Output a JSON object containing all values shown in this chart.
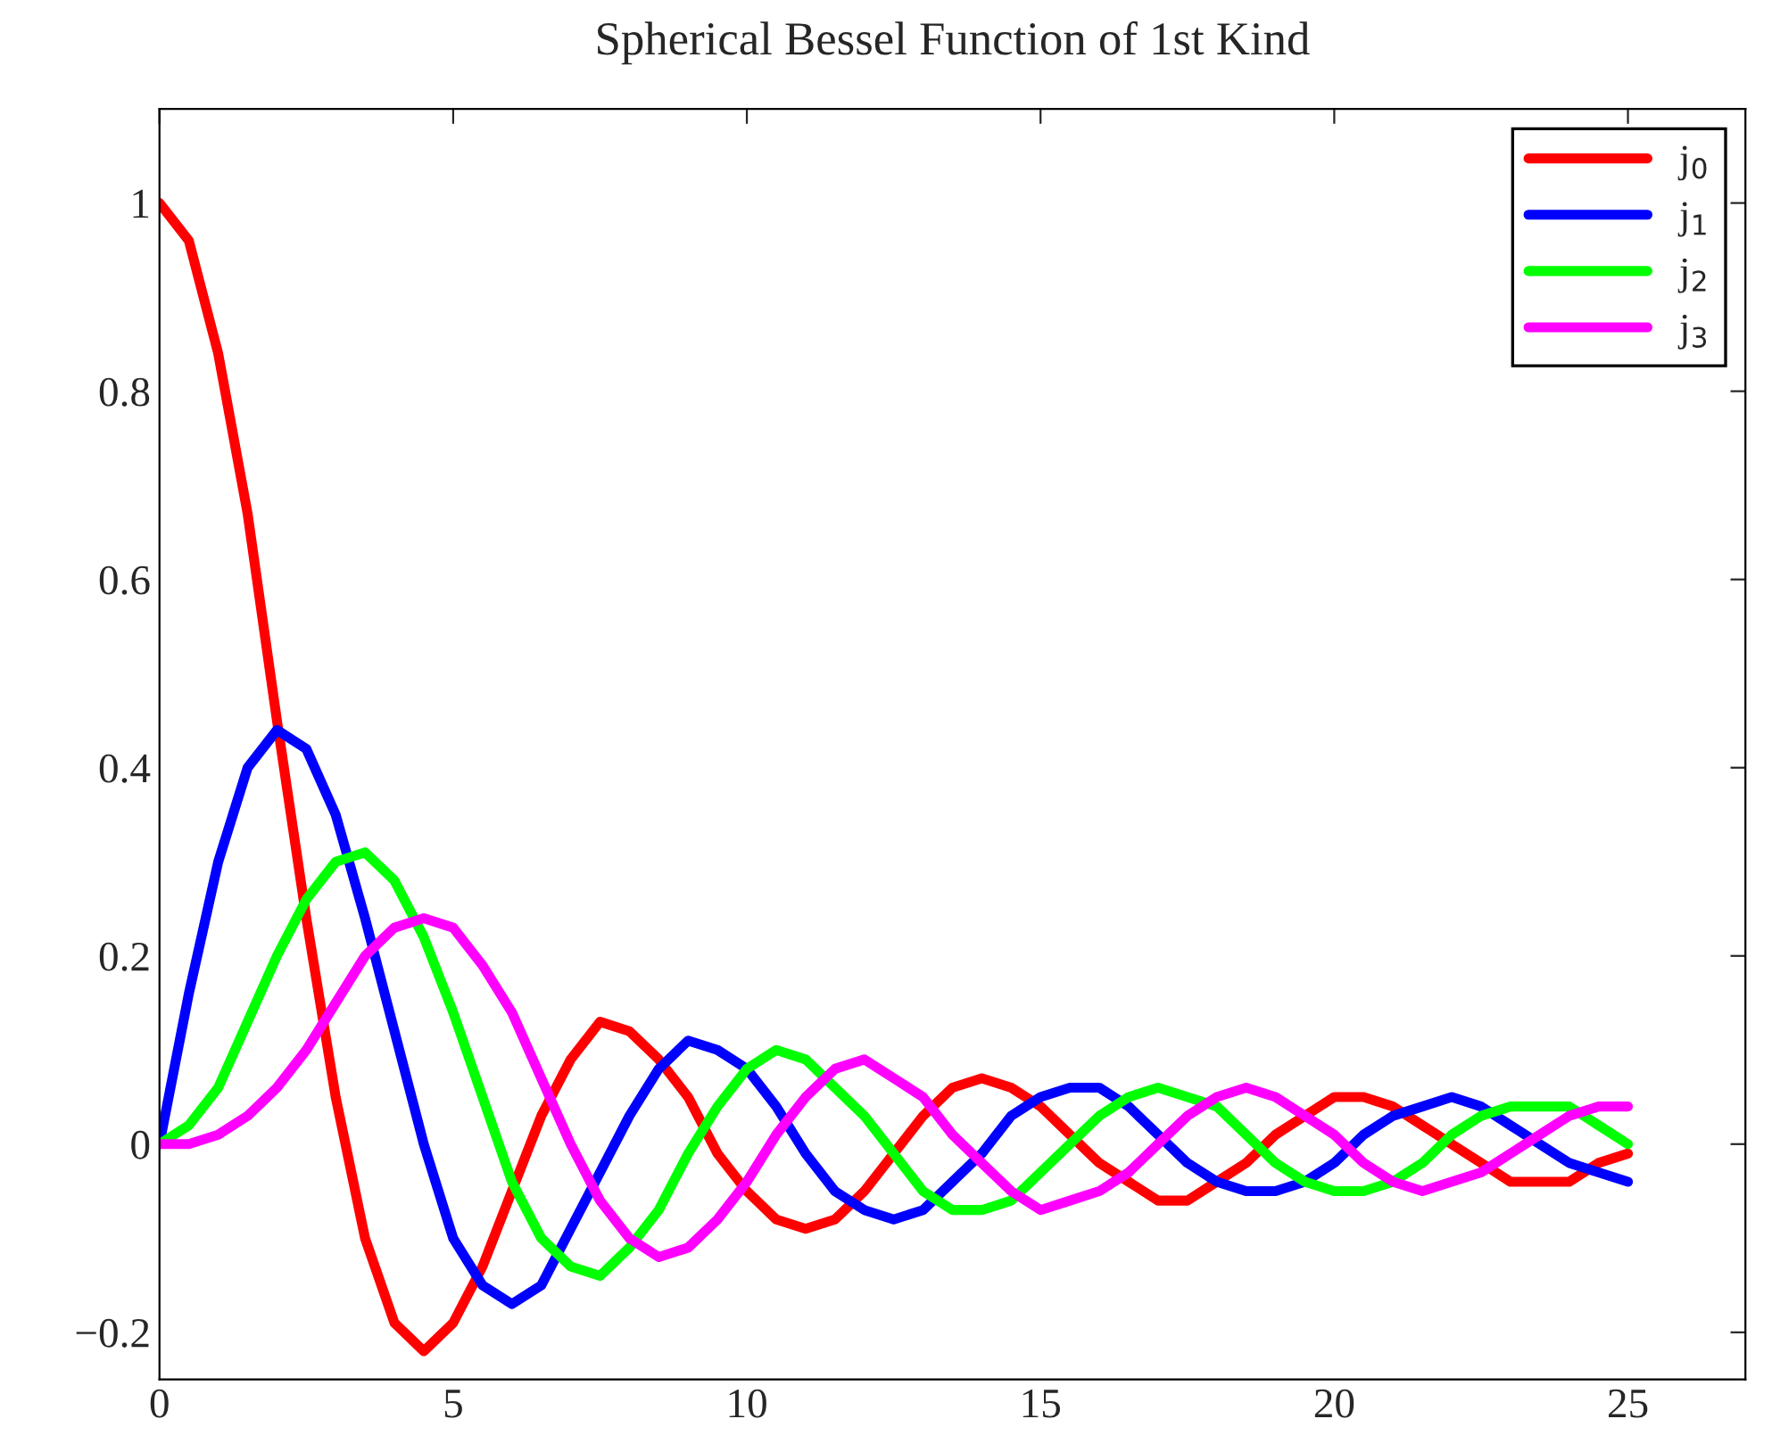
{
  "chart_data": {
    "type": "line",
    "title": "Spherical Bessel Function of 1st Kind",
    "x": [
      0,
      0.5,
      1,
      1.5,
      2,
      2.5,
      3,
      3.5,
      4,
      4.5,
      5,
      5.5,
      6,
      6.5,
      7,
      7.5,
      8,
      8.5,
      9,
      9.5,
      10,
      10.5,
      11,
      11.5,
      12,
      12.5,
      13,
      13.5,
      14,
      14.5,
      15,
      15.5,
      16,
      16.5,
      17,
      17.5,
      18,
      18.5,
      19,
      19.5,
      20,
      20.5,
      21,
      21.5,
      22,
      22.5,
      23,
      23.5,
      24,
      24.5,
      25
    ],
    "series": [
      {
        "name": "j$_{0}$",
        "color": "#ff0000",
        "values": [
          1,
          0.96,
          0.84,
          0.67,
          0.45,
          0.24,
          0.05,
          -0.1,
          -0.19,
          -0.22,
          -0.19,
          -0.13,
          -0.05,
          0.03,
          0.09,
          0.13,
          0.12,
          0.09,
          0.05,
          -0.01,
          -0.05,
          -0.08,
          -0.09,
          -0.08,
          -0.05,
          -0.01,
          0.03,
          0.06,
          0.07,
          0.06,
          0.04,
          0.01,
          -0.02,
          -0.04,
          -0.06,
          -0.06,
          -0.04,
          -0.02,
          0.01,
          0.03,
          0.05,
          0.05,
          0.04,
          0.02,
          0,
          -0.02,
          -0.04,
          -0.04,
          -0.04,
          -0.02,
          -0.01
        ]
      },
      {
        "name": "j$_{1}$",
        "color": "#0000ff",
        "values": [
          0,
          0.16,
          0.3,
          0.4,
          0.44,
          0.42,
          0.35,
          0.24,
          0.12,
          0,
          -0.1,
          -0.15,
          -0.17,
          -0.15,
          -0.09,
          -0.03,
          0.03,
          0.08,
          0.11,
          0.1,
          0.08,
          0.04,
          -0.01,
          -0.05,
          -0.07,
          -0.08,
          -0.07,
          -0.04,
          -0.01,
          0.03,
          0.05,
          0.06,
          0.06,
          0.04,
          0.01,
          -0.02,
          -0.04,
          -0.05,
          -0.05,
          -0.04,
          -0.02,
          0.01,
          0.03,
          0.04,
          0.05,
          0.04,
          0.02,
          0,
          -0.02,
          -0.03,
          -0.04
        ]
      },
      {
        "name": "j$_{2}$",
        "color": "#00ff00",
        "values": [
          0,
          0.02,
          0.06,
          0.13,
          0.2,
          0.26,
          0.3,
          0.31,
          0.28,
          0.22,
          0.14,
          0.05,
          -0.04,
          -0.1,
          -0.13,
          -0.14,
          -0.11,
          -0.07,
          -0.01,
          0.04,
          0.08,
          0.1,
          0.09,
          0.06,
          0.03,
          -0.01,
          -0.05,
          -0.07,
          -0.07,
          -0.06,
          -0.03,
          0,
          0.03,
          0.05,
          0.06,
          0.05,
          0.04,
          0.01,
          -0.02,
          -0.04,
          -0.05,
          -0.05,
          -0.04,
          -0.02,
          0.01,
          0.03,
          0.04,
          0.04,
          0.04,
          0.02,
          0
        ]
      },
      {
        "name": "j$_{3}$",
        "color": "#ff00ff",
        "values": [
          0,
          0,
          0.01,
          0.03,
          0.06,
          0.1,
          0.15,
          0.2,
          0.23,
          0.24,
          0.23,
          0.19,
          0.14,
          0.07,
          0,
          -0.06,
          -0.1,
          -0.12,
          -0.11,
          -0.08,
          -0.04,
          0.01,
          0.05,
          0.08,
          0.09,
          0.07,
          0.05,
          0.01,
          -0.02,
          -0.05,
          -0.07,
          -0.06,
          -0.05,
          -0.03,
          0,
          0.03,
          0.05,
          0.06,
          0.05,
          0.03,
          0.01,
          -0.02,
          -0.04,
          -0.05,
          -0.04,
          -0.03,
          -0.01,
          0.01,
          0.03,
          0.04,
          0.04
        ]
      }
    ],
    "xlim": [
      0,
      27
    ],
    "xticks": [
      0,
      5,
      10,
      15,
      20,
      25
    ],
    "ylim": [
      -0.25,
      1.1
    ],
    "yticks": [
      {
        "value": -0.2,
        "label": "−0.2"
      },
      0,
      0.2,
      0.4,
      0.6,
      0.8,
      1
    ],
    "grid": false,
    "legend": "top right",
    "line_style": "solid",
    "marker": "none"
  }
}
